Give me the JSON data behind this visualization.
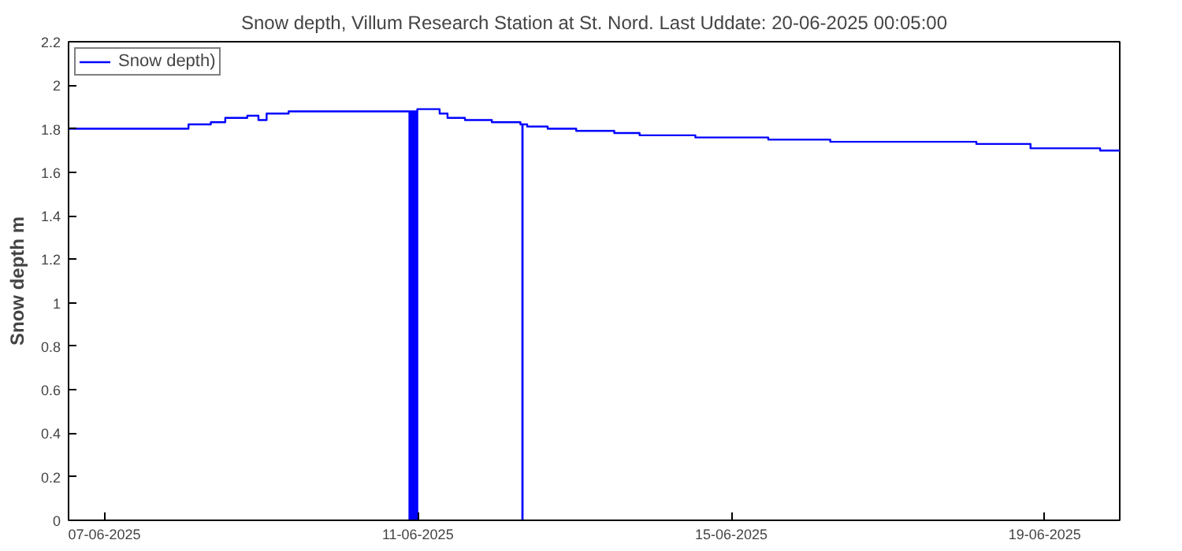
{
  "chart_data": {
    "type": "step",
    "title": "Snow depth, Villum Research Station at St. Nord. Last Uddate: 20-06-2025 00:05:00",
    "ylabel": "Snow depth m",
    "xlim": [
      "2025-06-06T13:00",
      "2025-06-19T23:00"
    ],
    "xticks": [
      {
        "value": "2025-06-07",
        "label": "07-06-2025"
      },
      {
        "value": "2025-06-11",
        "label": "11-06-2025"
      },
      {
        "value": "2025-06-15",
        "label": "15-06-2025"
      },
      {
        "value": "2025-06-19",
        "label": "19-06-2025"
      }
    ],
    "ylim": [
      0,
      2.2
    ],
    "yticks": [
      0,
      0.2,
      0.4,
      0.6,
      0.8,
      1,
      1.2,
      1.4,
      1.6,
      1.8,
      2,
      2.2
    ],
    "grid": false,
    "legend": "top left",
    "marker": "none",
    "line_style": "solid",
    "series": [
      {
        "name": "Snow depth)",
        "color": "#0000ff",
        "x": [
          "2025-06-06T13:00",
          "2025-06-08T01:45",
          "2025-06-08T08:35",
          "2025-06-08T13:00",
          "2025-06-08T19:45",
          "2025-06-08T23:10",
          "2025-06-09T01:40",
          "2025-06-09T08:25",
          "2025-06-10T21:25",
          "2025-06-10T21:40",
          "2025-06-10T21:55",
          "2025-06-10T22:10",
          "2025-06-10T22:25",
          "2025-06-10T22:40",
          "2025-06-10T22:55",
          "2025-06-10T23:10",
          "2025-06-10T23:25",
          "2025-06-10T23:50",
          "2025-06-11T06:40",
          "2025-06-11T09:05",
          "2025-06-11T14:25",
          "2025-06-11T22:40",
          "2025-06-12T07:25",
          "2025-06-12T08:00",
          "2025-06-12T08:05",
          "2025-06-12T09:30",
          "2025-06-12T15:45",
          "2025-06-13T00:30",
          "2025-06-13T12:10",
          "2025-06-13T19:55",
          "2025-06-14T13:00",
          "2025-06-15T11:20",
          "2025-06-16T06:20",
          "2025-06-18T03:05",
          "2025-06-18T19:40",
          "2025-06-19T17:00",
          "2025-06-19T23:00"
        ],
        "values": [
          1.8,
          1.82,
          1.83,
          1.85,
          1.86,
          1.84,
          1.87,
          1.88,
          0,
          1.88,
          0,
          1.88,
          0,
          1.88,
          0,
          1.88,
          0,
          1.89,
          1.87,
          1.85,
          1.84,
          1.83,
          1.82,
          0,
          1.82,
          1.81,
          1.8,
          1.79,
          1.78,
          1.77,
          1.76,
          1.75,
          1.74,
          1.73,
          1.71,
          1.7,
          1.7
        ]
      }
    ]
  }
}
